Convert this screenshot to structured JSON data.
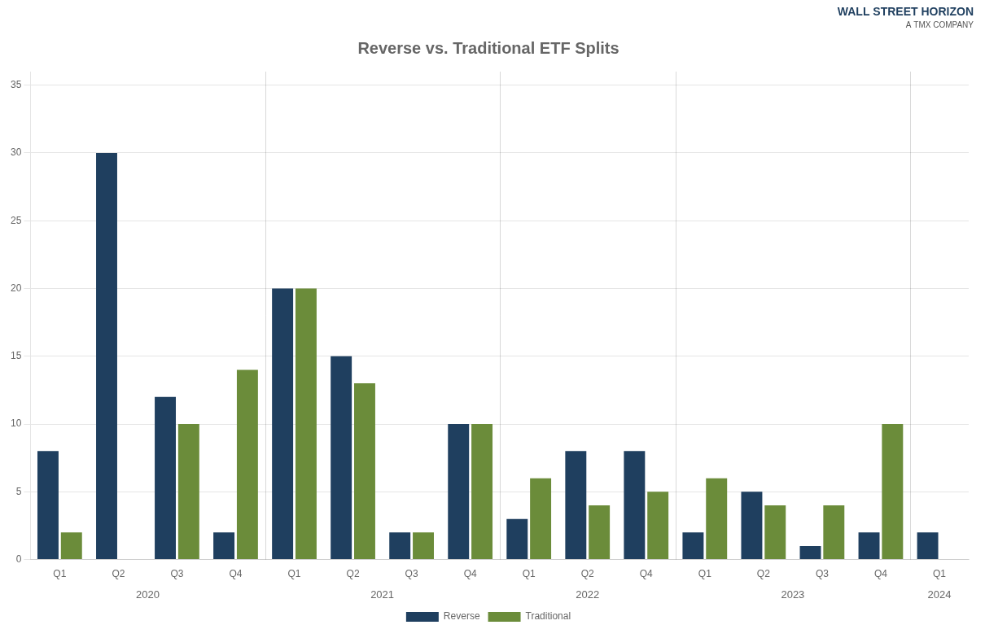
{
  "chart_data": {
    "type": "bar",
    "title": "Reverse vs. Traditional ETF Splits",
    "categories": [
      "Q1",
      "Q2",
      "Q3",
      "Q4",
      "Q1",
      "Q2",
      "Q3",
      "Q4",
      "Q1",
      "Q2",
      "Q4",
      "Q1",
      "Q2",
      "Q3",
      "Q4",
      "Q1"
    ],
    "category_groups": [
      "2020",
      "2020",
      "2020",
      "2020",
      "2021",
      "2021",
      "2021",
      "2021",
      "2022",
      "2022",
      "2022",
      "2023",
      "2023",
      "2023",
      "2023",
      "2024"
    ],
    "series": [
      {
        "name": "Reverse",
        "color": "#1f3f5f",
        "values": [
          8,
          30,
          12,
          2,
          20,
          15,
          2,
          10,
          3,
          8,
          8,
          2,
          5,
          1,
          2,
          2
        ]
      },
      {
        "name": "Traditional",
        "color": "#6b8c3a",
        "values": [
          2,
          0,
          10,
          14,
          20,
          13,
          2,
          10,
          6,
          4,
          5,
          6,
          4,
          4,
          10,
          0
        ]
      }
    ],
    "ylim": [
      0,
      36
    ],
    "yticks": [
      0,
      5,
      10,
      15,
      20,
      25,
      30,
      35
    ],
    "grid": true,
    "legend": "bottom",
    "annotations": [
      "WALL STREET HORIZON",
      "A TMX COMPANY"
    ]
  }
}
